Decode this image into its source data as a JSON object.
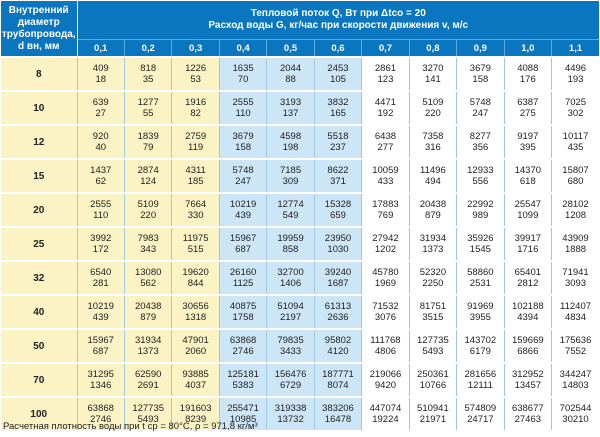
{
  "header": {
    "left": "Внутренний диаметр трубопровода, d вн, мм",
    "top_line1": "Тепловой поток Q, Вт при Δtco = 20",
    "top_line2": "Расход воды G, кг/час при скорости движения v, м/с"
  },
  "speeds": [
    "0,1",
    "0,2",
    "0,3",
    "0,4",
    "0,5",
    "0,6",
    "0,7",
    "0,8",
    "0,9",
    "1,0",
    "1,1"
  ],
  "rows": [
    {
      "d": "8",
      "q": [
        "409",
        "818",
        "1226",
        "1635",
        "2044",
        "2453",
        "2861",
        "3270",
        "3679",
        "4088",
        "4496"
      ],
      "g": [
        "18",
        "35",
        "53",
        "70",
        "88",
        "105",
        "123",
        "141",
        "158",
        "176",
        "193"
      ]
    },
    {
      "d": "10",
      "q": [
        "639",
        "1277",
        "1916",
        "2555",
        "3193",
        "3832",
        "4471",
        "5109",
        "5748",
        "6387",
        "7025"
      ],
      "g": [
        "27",
        "55",
        "82",
        "110",
        "137",
        "165",
        "192",
        "220",
        "247",
        "275",
        "302"
      ]
    },
    {
      "d": "12",
      "q": [
        "920",
        "1839",
        "2759",
        "3679",
        "4598",
        "5518",
        "6438",
        "7358",
        "8277",
        "9197",
        "10117"
      ],
      "g": [
        "40",
        "79",
        "119",
        "158",
        "198",
        "237",
        "277",
        "316",
        "356",
        "395",
        "435"
      ]
    },
    {
      "d": "15",
      "q": [
        "1437",
        "2874",
        "4311",
        "5748",
        "7185",
        "8622",
        "10059",
        "11496",
        "12933",
        "14370",
        "15807"
      ],
      "g": [
        "62",
        "124",
        "185",
        "247",
        "309",
        "371",
        "433",
        "494",
        "556",
        "618",
        "680"
      ]
    },
    {
      "d": "20",
      "q": [
        "2555",
        "5109",
        "7664",
        "10219",
        "12774",
        "15328",
        "17883",
        "20438",
        "22992",
        "25547",
        "28102"
      ],
      "g": [
        "110",
        "220",
        "330",
        "439",
        "549",
        "659",
        "769",
        "879",
        "989",
        "1099",
        "1208"
      ]
    },
    {
      "d": "25",
      "q": [
        "3992",
        "7983",
        "11975",
        "15967",
        "19959",
        "23950",
        "27942",
        "31934",
        "35926",
        "39917",
        "43909"
      ],
      "g": [
        "172",
        "343",
        "515",
        "687",
        "858",
        "1030",
        "1202",
        "1373",
        "1545",
        "1716",
        "1888"
      ]
    },
    {
      "d": "32",
      "q": [
        "6540",
        "13080",
        "19620",
        "26160",
        "32700",
        "39240",
        "45780",
        "52320",
        "58860",
        "65401",
        "71941"
      ],
      "g": [
        "281",
        "562",
        "844",
        "1125",
        "1406",
        "1687",
        "1969",
        "2250",
        "2531",
        "2812",
        "3093"
      ]
    },
    {
      "d": "40",
      "q": [
        "10219",
        "20438",
        "30656",
        "40875",
        "51094",
        "61313",
        "71532",
        "81751",
        "91969",
        "102188",
        "112407"
      ],
      "g": [
        "439",
        "879",
        "1318",
        "1758",
        "2197",
        "2636",
        "3076",
        "3515",
        "3955",
        "4394",
        "4834"
      ]
    },
    {
      "d": "50",
      "q": [
        "15967",
        "31934",
        "47901",
        "63868",
        "79835",
        "95802",
        "111768",
        "127735",
        "143702",
        "159669",
        "175636"
      ],
      "g": [
        "687",
        "1373",
        "2060",
        "2746",
        "3433",
        "4120",
        "4806",
        "5493",
        "6179",
        "6866",
        "7552"
      ]
    },
    {
      "d": "70",
      "q": [
        "31295",
        "62590",
        "93885",
        "125181",
        "156476",
        "187771",
        "219066",
        "250361",
        "281656",
        "312952",
        "344247"
      ],
      "g": [
        "1346",
        "2691",
        "4037",
        "5383",
        "6729",
        "8074",
        "9420",
        "10766",
        "12111",
        "13457",
        "14803"
      ]
    },
    {
      "d": "100",
      "q": [
        "63868",
        "127735",
        "191603",
        "255471",
        "319338",
        "383206",
        "447074",
        "510941",
        "574809",
        "638677",
        "702544"
      ],
      "g": [
        "2746",
        "5493",
        "8239",
        "10985",
        "13732",
        "16478",
        "19224",
        "21971",
        "24717",
        "27463",
        "30210"
      ]
    }
  ],
  "footnote": "Расчетная плотность воды при t ср = 80°С, ρ = 971,8 кг/м³"
}
